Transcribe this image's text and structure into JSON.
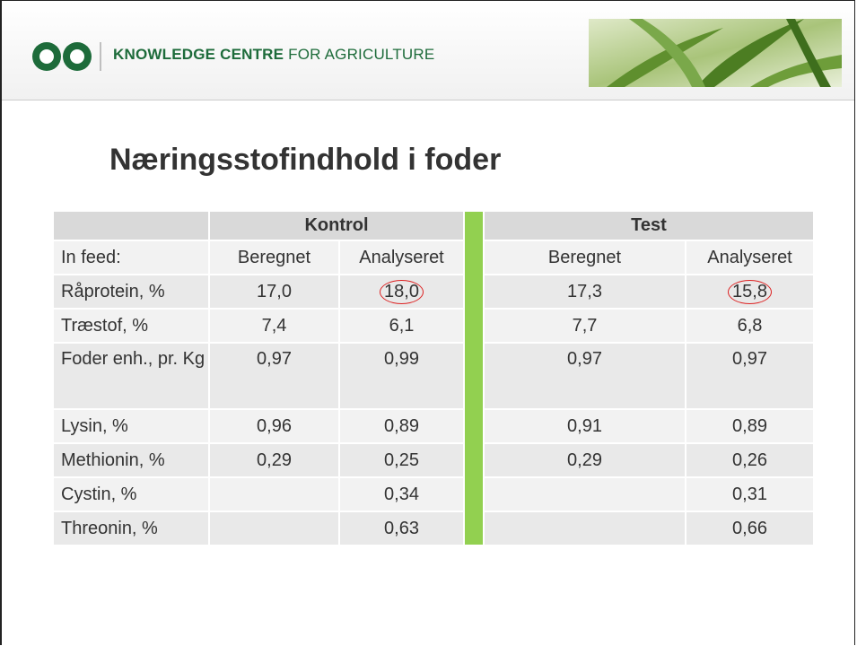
{
  "header": {
    "brand_bold": "KNOWLEDGE CENTRE",
    "brand_rest": "FOR AGRICULTURE"
  },
  "title": "Næringsstofindhold i foder",
  "table": {
    "groups": [
      "Kontrol",
      "Test"
    ],
    "rows": [
      [
        "In feed:",
        "Beregnet",
        "Analyseret",
        "Beregnet",
        "Analyseret"
      ],
      [
        "Råprotein, %",
        "17,0",
        "18,0",
        "17,3",
        "15,8"
      ],
      [
        "Træstof, %",
        "7,4",
        "6,1",
        "7,7",
        "6,8"
      ],
      [
        "Foder enh., pr. Kg",
        "0,97",
        "0,99",
        "0,97",
        "0,97"
      ],
      [
        "Lysin, %",
        "0,96",
        "0,89",
        "0,91",
        "0,89"
      ],
      [
        "Methionin, %",
        "0,29",
        "0,25",
        "0,29",
        "0,26"
      ],
      [
        "Cystin, %",
        null,
        "0,34",
        null,
        "0,31"
      ],
      [
        "Threonin, %",
        null,
        "0,63",
        null,
        "0,66"
      ]
    ]
  }
}
